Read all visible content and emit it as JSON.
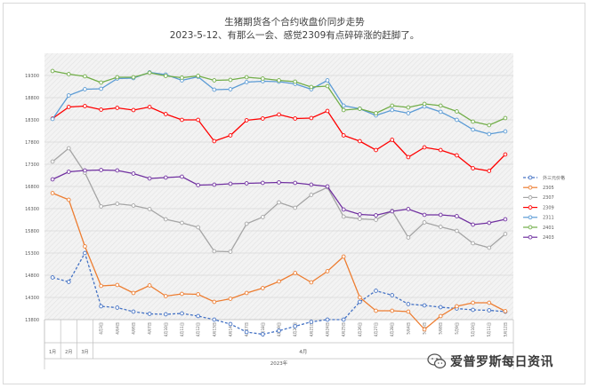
{
  "chart_data": {
    "type": "line",
    "title": "生猪期货各个合约收盘价同步走势",
    "subtitle": "2023-5-12、有那么一会、感觉2309有点碎碎涨的赶脚了。",
    "ylim": [
      13800,
      19800
    ],
    "yticks": [
      "13800",
      "14300",
      "14800",
      "15300",
      "15800",
      "16300",
      "16800",
      "17300",
      "17800",
      "18300",
      "18800",
      "19300"
    ],
    "categories": [
      "1月",
      "2月",
      "3月",
      "4月3日",
      "4月4日",
      "4月6日",
      "4月7日",
      "4月10日",
      "4月11日",
      "4月12日",
      "4月13日",
      "4月14日",
      "4月17日",
      "4月18日",
      "4月19日",
      "4月20日",
      "4月21日",
      "4月24日",
      "4月25日",
      "4月26日",
      "4月27日",
      "4月28日",
      "5月4日",
      "5月5日",
      "5月8日",
      "5月9日",
      "5月10日",
      "5月11日",
      "5月12日"
    ],
    "month_labels": {
      "jan": "1月",
      "feb": "2月",
      "mar": "3月",
      "apr": "4月",
      "year": "2023年"
    },
    "series": [
      {
        "name": "外三元价格",
        "color": "#4472c4",
        "dashed": true,
        "values": [
          14750,
          14650,
          15300,
          14100,
          14070,
          13980,
          13930,
          13920,
          13940,
          13880,
          13800,
          13700,
          13520,
          13470,
          13550,
          13650,
          13750,
          13800,
          13800,
          14200,
          14450,
          14350,
          14150,
          14120,
          14080,
          14050,
          14020,
          14010,
          13980
        ]
      },
      {
        "name": "2305",
        "color": "#ed7d31",
        "values": [
          16650,
          16500,
          15450,
          14560,
          14580,
          14400,
          14570,
          14330,
          14380,
          14370,
          14200,
          14270,
          14400,
          14510,
          14660,
          14850,
          14640,
          14890,
          15220,
          14300,
          14000,
          14000,
          13980,
          13580,
          13880,
          14100,
          14180,
          14180,
          13990
        ]
      },
      {
        "name": "2307",
        "color": "#a5a5a5",
        "values": [
          17360,
          17660,
          17110,
          16350,
          16410,
          16370,
          16290,
          16060,
          15980,
          15880,
          15340,
          15330,
          15960,
          16110,
          16440,
          16320,
          16610,
          16780,
          16120,
          16070,
          16050,
          16250,
          15650,
          15990,
          15890,
          15800,
          15520,
          15420,
          15730
        ]
      },
      {
        "name": "2309",
        "color": "#ff0000",
        "values": [
          18330,
          18590,
          18610,
          18530,
          18570,
          18520,
          18590,
          18430,
          18300,
          18300,
          17820,
          17950,
          18290,
          18330,
          18420,
          18330,
          18340,
          18500,
          17950,
          17820,
          17620,
          17850,
          17460,
          17680,
          17620,
          17500,
          17210,
          17150,
          17520
        ]
      },
      {
        "name": "2311",
        "color": "#5b9bd5",
        "values": [
          18320,
          18850,
          18990,
          19000,
          19230,
          19240,
          19370,
          19320,
          19190,
          19270,
          18980,
          18990,
          19150,
          19170,
          19160,
          19110,
          18990,
          19190,
          18620,
          18550,
          18400,
          18520,
          18450,
          18600,
          18480,
          18300,
          18080,
          17980,
          18040
        ]
      },
      {
        "name": "2401",
        "color": "#70ad47",
        "values": [
          19400,
          19330,
          19280,
          19140,
          19260,
          19260,
          19360,
          19290,
          19250,
          19290,
          19190,
          19200,
          19260,
          19230,
          19190,
          19160,
          19040,
          19060,
          18520,
          18550,
          18450,
          18620,
          18580,
          18660,
          18620,
          18490,
          18260,
          18180,
          18340
        ]
      },
      {
        "name": "2403",
        "color": "#7030a0",
        "values": [
          16960,
          17130,
          17160,
          17170,
          17160,
          17090,
          16980,
          17000,
          17020,
          16830,
          16840,
          16860,
          16870,
          16880,
          16890,
          16880,
          16840,
          16800,
          16280,
          16170,
          16150,
          16240,
          16290,
          16160,
          16160,
          16130,
          15940,
          15980,
          16060
        ]
      }
    ],
    "watermark": "爱普罗斯每日资讯"
  }
}
